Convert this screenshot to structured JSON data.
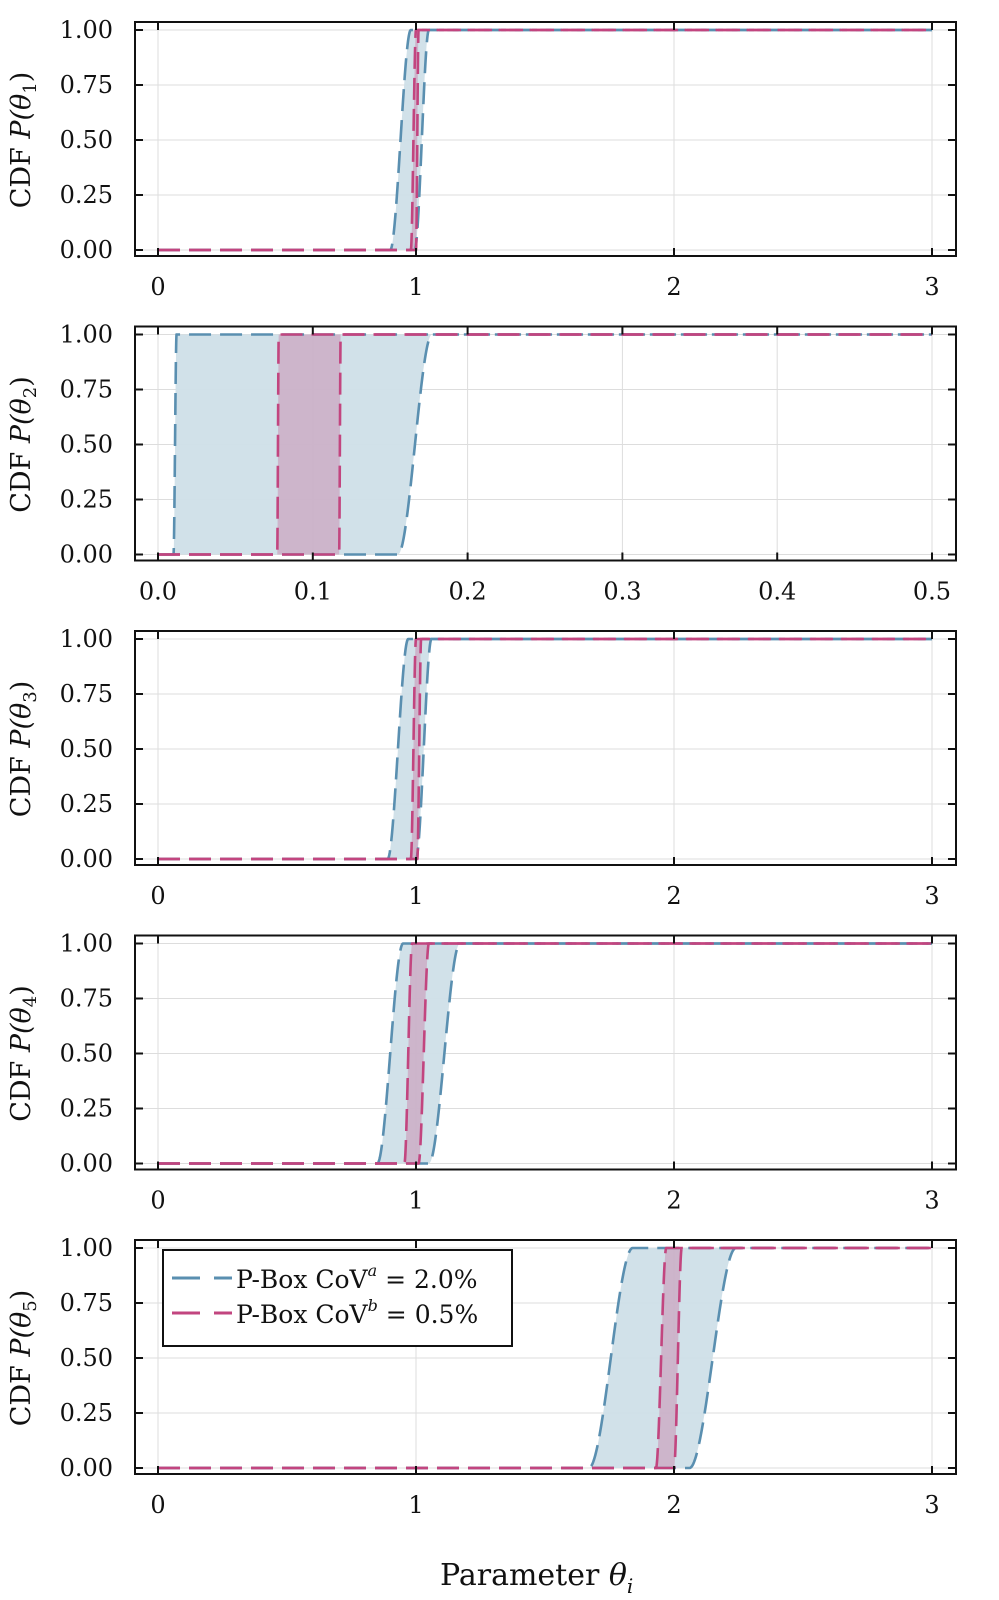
{
  "chart_data": {
    "type": "line",
    "xlabel_main": "Parameter ",
    "xlabel_sym": "θ",
    "xlabel_sub": "i",
    "colors": {
      "blue": "#5a8fb0",
      "blue_fill": "#cfdfe8",
      "pink": "#c2457f",
      "pink_fill": "#c2457f"
    },
    "legend": {
      "placement": "top-left of last panel",
      "entries": [
        {
          "label": "P-Box CoV",
          "sup": "a",
          "value": " = 2.0%",
          "series": "blue"
        },
        {
          "label": "P-Box CoV",
          "sup": "b",
          "value": " = 0.5%",
          "series": "pink"
        }
      ]
    },
    "panels": [
      {
        "ylabel": "CDF P(θ",
        "sub": "1",
        "xlim": [
          0,
          3
        ],
        "xticks": [
          "0",
          "1",
          "2",
          "3"
        ],
        "xtick_values": [
          0,
          1,
          2,
          3
        ],
        "ylim": [
          0,
          1
        ],
        "yticks": [
          "0.00",
          "0.25",
          "0.50",
          "0.75",
          "1.00"
        ],
        "series": [
          {
            "name": "blue",
            "lower_rise": [
              0.9,
              0.98
            ],
            "upper_rise": [
              0.995,
              1.05
            ]
          },
          {
            "name": "pink",
            "lower_rise": [
              0.98,
              1.0
            ],
            "upper_rise": [
              1.0,
              1.01
            ]
          }
        ]
      },
      {
        "ylabel": "CDF P(θ",
        "sub": "2",
        "xlim": [
          0,
          0.5
        ],
        "xticks": [
          "0.0",
          "0.1",
          "0.2",
          "0.3",
          "0.4",
          "0.5"
        ],
        "xtick_values": [
          0,
          0.1,
          0.2,
          0.3,
          0.4,
          0.5
        ],
        "ylim": [
          0,
          1
        ],
        "yticks": [
          "0.00",
          "0.25",
          "0.50",
          "0.75",
          "1.00"
        ],
        "series": [
          {
            "name": "blue",
            "lower_rise": [
              0.01,
              0.012
            ],
            "upper_rise": [
              0.155,
              0.177
            ]
          },
          {
            "name": "pink",
            "lower_rise": [
              0.077,
              0.078
            ],
            "upper_rise": [
              0.117,
              0.118
            ]
          }
        ]
      },
      {
        "ylabel": "CDF P(θ",
        "sub": "3",
        "xlim": [
          0,
          3
        ],
        "xticks": [
          "0",
          "1",
          "2",
          "3"
        ],
        "xtick_values": [
          0,
          1,
          2,
          3
        ],
        "ylim": [
          0,
          1
        ],
        "yticks": [
          "0.00",
          "0.25",
          "0.50",
          "0.75",
          "1.00"
        ],
        "series": [
          {
            "name": "blue",
            "lower_rise": [
              0.89,
              0.97
            ],
            "upper_rise": [
              1.0,
              1.06
            ]
          },
          {
            "name": "pink",
            "lower_rise": [
              0.98,
              1.0
            ],
            "upper_rise": [
              1.005,
              1.02
            ]
          }
        ]
      },
      {
        "ylabel": "CDF P(θ",
        "sub": "4",
        "xlim": [
          0,
          3
        ],
        "xticks": [
          "0",
          "1",
          "2",
          "3"
        ],
        "xtick_values": [
          0,
          1,
          2,
          3
        ],
        "ylim": [
          0,
          1
        ],
        "yticks": [
          "0.00",
          "0.25",
          "0.50",
          "0.75",
          "1.00"
        ],
        "series": [
          {
            "name": "blue",
            "lower_rise": [
              0.85,
              0.95
            ],
            "upper_rise": [
              1.05,
              1.17
            ]
          },
          {
            "name": "pink",
            "lower_rise": [
              0.955,
              0.985
            ],
            "upper_rise": [
              1.01,
              1.05
            ]
          }
        ]
      },
      {
        "ylabel": "CDF P(θ",
        "sub": "5",
        "xlim": [
          0,
          3
        ],
        "xticks": [
          "0",
          "1",
          "2",
          "3"
        ],
        "xtick_values": [
          0,
          1,
          2,
          3
        ],
        "ylim": [
          0,
          1
        ],
        "yticks": [
          "0.00",
          "0.25",
          "0.50",
          "0.75",
          "1.00"
        ],
        "series": [
          {
            "name": "blue",
            "lower_rise": [
              1.67,
              1.84
            ],
            "upper_rise": [
              2.06,
              2.24
            ]
          },
          {
            "name": "pink",
            "lower_rise": [
              1.93,
              1.97
            ],
            "upper_rise": [
              2.0,
              2.03
            ]
          }
        ]
      }
    ]
  }
}
